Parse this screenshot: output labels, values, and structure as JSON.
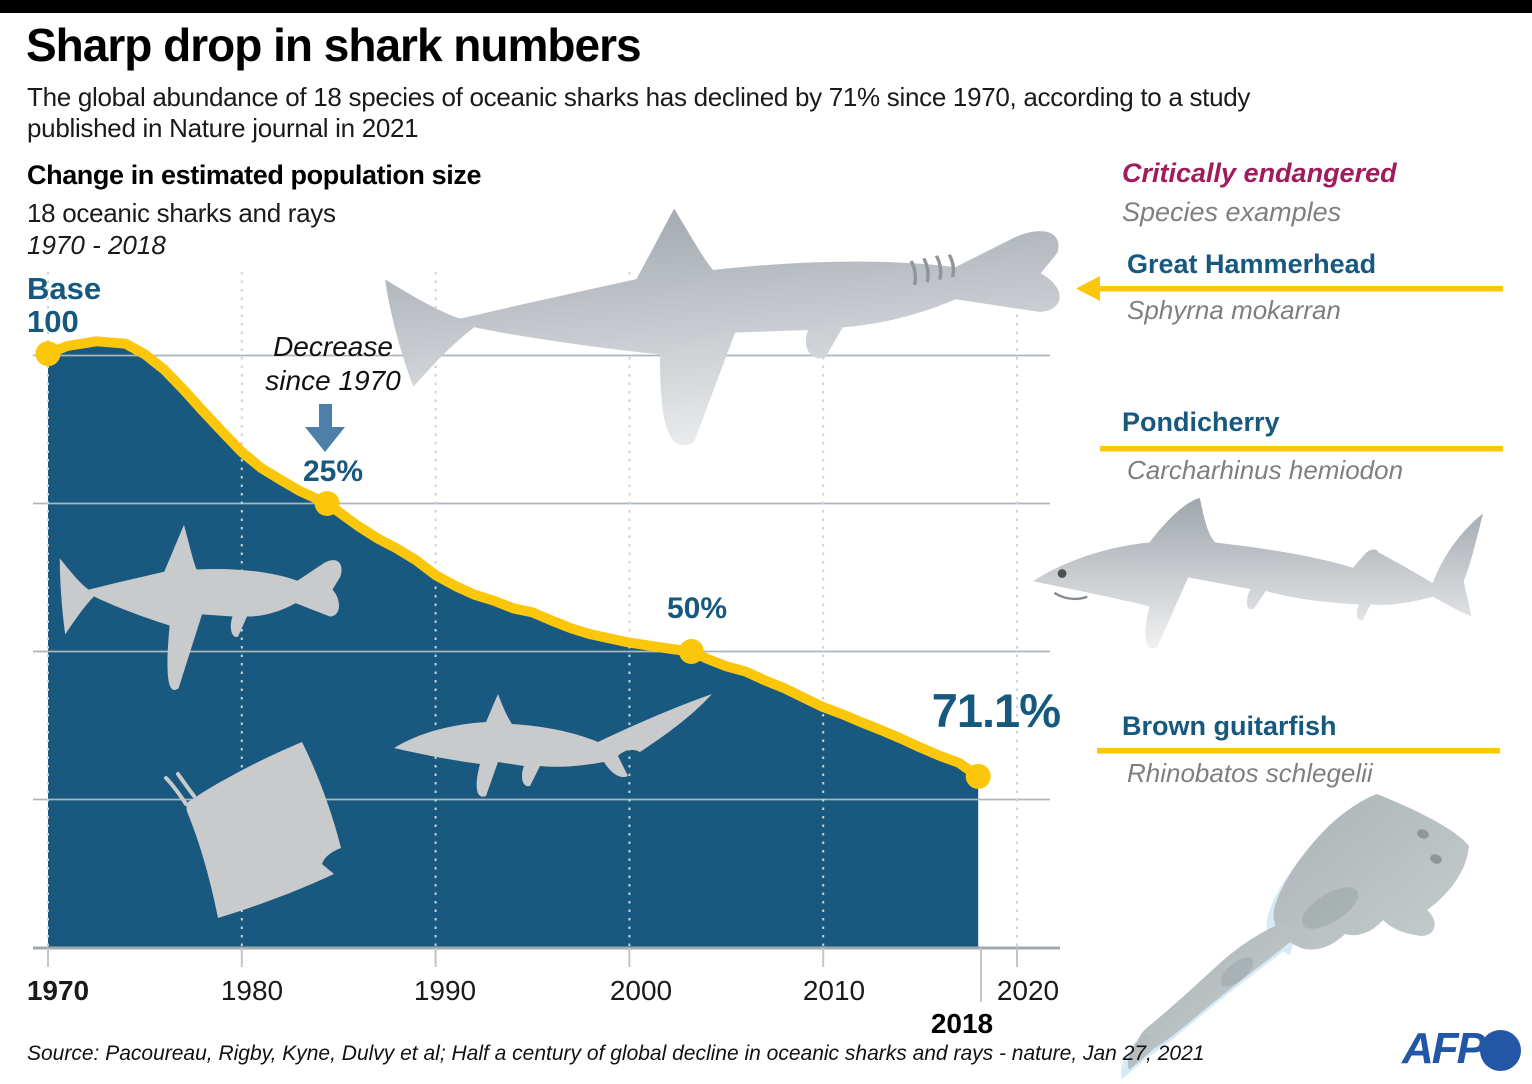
{
  "header": {
    "title": "Sharp drop in shark numbers",
    "subtitle_lines": [
      "The global abundance of 18 species of oceanic sharks has declined by 71% since 1970, according to a study",
      "published in Nature journal in 2021"
    ]
  },
  "chart_data": {
    "type": "area",
    "title": "Change in estimated population size",
    "subtitle": "18 oceanic sharks and rays",
    "period_label": "1970 - 2018",
    "x_range": [
      1970,
      2020
    ],
    "ylim": [
      0,
      105
    ],
    "grid": true,
    "legend": false,
    "x_tick_labels": [
      "1970",
      "1980",
      "1990",
      "2000",
      "2010",
      "2020"
    ],
    "grid_levels": [
      100,
      75,
      50,
      25
    ],
    "baseline": {
      "label_lines": [
        "Base",
        "100"
      ],
      "value": 100
    },
    "series": [
      {
        "name": "Estimated population of 18 oceanic sharks and rays (1970 = 100)",
        "points": [
          [
            1970,
            100.3
          ],
          [
            1971,
            101.6
          ],
          [
            1972.5,
            102.4
          ],
          [
            1974,
            102.0
          ],
          [
            1975,
            100.2
          ],
          [
            1976,
            97.6
          ],
          [
            1977,
            94.2
          ],
          [
            1978,
            90.6
          ],
          [
            1979,
            87.1
          ],
          [
            1980,
            83.7
          ],
          [
            1981,
            81.0
          ],
          [
            1982,
            79.0
          ],
          [
            1983,
            77.1
          ],
          [
            1984.4,
            75.0
          ],
          [
            1986,
            71.2
          ],
          [
            1987,
            69.1
          ],
          [
            1988,
            67.4
          ],
          [
            1989,
            65.4
          ],
          [
            1990,
            62.9
          ],
          [
            1991,
            61.1
          ],
          [
            1992,
            59.6
          ],
          [
            1993,
            58.6
          ],
          [
            1994,
            57.3
          ],
          [
            1995,
            56.6
          ],
          [
            1996,
            55.2
          ],
          [
            1997,
            53.9
          ],
          [
            1998,
            52.9
          ],
          [
            1999,
            52.2
          ],
          [
            2000,
            51.5
          ],
          [
            2001,
            51.0
          ],
          [
            2002,
            50.5
          ],
          [
            2003.2,
            50.0
          ],
          [
            2004,
            48.8
          ],
          [
            2005,
            47.5
          ],
          [
            2006,
            46.6
          ],
          [
            2007,
            45.1
          ],
          [
            2008,
            43.8
          ],
          [
            2009,
            42.2
          ],
          [
            2010,
            40.6
          ],
          [
            2011,
            39.4
          ],
          [
            2012,
            38.0
          ],
          [
            2013,
            36.7
          ],
          [
            2014,
            35.3
          ],
          [
            2015,
            33.8
          ],
          [
            2016,
            32.4
          ],
          [
            2017,
            31.2
          ],
          [
            2018,
            28.9
          ]
        ]
      }
    ],
    "markers": [
      {
        "year": 1970,
        "value": 100.3,
        "label": "Base 100"
      },
      {
        "year": 1984.4,
        "value": 75,
        "label": "25%",
        "note_lines": [
          "Decrease",
          "since 1970"
        ]
      },
      {
        "year": 2003.2,
        "value": 50,
        "label": "50%"
      },
      {
        "year": 2018,
        "value": 28.9,
        "label": "71.1%",
        "end_year_label": "2018"
      }
    ]
  },
  "species_panel": {
    "heading": "Critically endangered",
    "subheading": "Species examples",
    "species": [
      {
        "name": "Great Hammerhead",
        "latin": "Sphyrna mokarran"
      },
      {
        "name": "Pondicherry",
        "latin": "Carcharhinus hemiodon"
      },
      {
        "name": "Brown guitarfish",
        "latin": "Rhinobatos schlegelii"
      }
    ]
  },
  "footer": {
    "source": "Source: Pacoureau, Rigby, Kyne, Dulvy et al; Half a century of global decline in oceanic sharks and rays - nature, Jan 27, 2021",
    "logo_text": "AFP"
  },
  "colors": {
    "accent_yellow": "#fcc60a",
    "area_fill_blue": "#19597f",
    "label_blue": "#17587f",
    "critically_endangered_magenta": "#a01c5c",
    "gray_text": "#7f7f7f",
    "afp_blue": "#2356a5",
    "decrease_arrow_blue": "#4d7fa9"
  }
}
